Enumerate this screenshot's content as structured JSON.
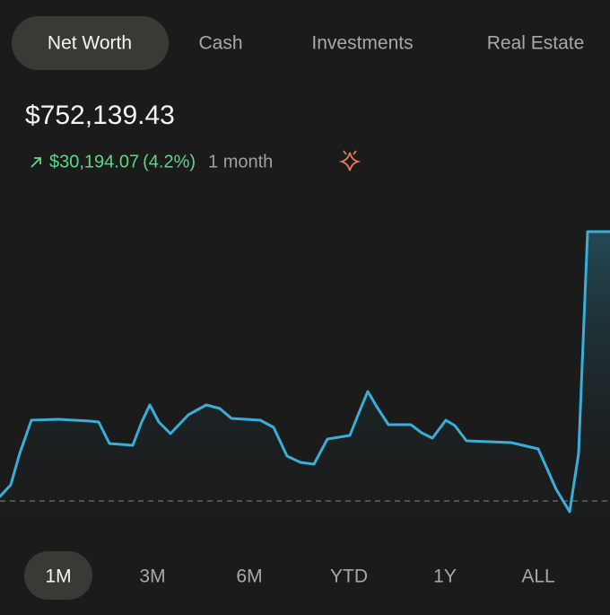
{
  "tabs": [
    "Net Worth",
    "Cash",
    "Investments",
    "Real Estate"
  ],
  "active_tab": 0,
  "balance": "$752,139.43",
  "change": {
    "amount": "$30,194.07",
    "percent": "(4.2%)",
    "period": "1 month"
  },
  "chart_data": {
    "type": "line",
    "color": "#3aaed8",
    "baseline": 42,
    "x": [
      0,
      12,
      22,
      35,
      65,
      100,
      110,
      122,
      148,
      158,
      167,
      177,
      190,
      210,
      230,
      245,
      258,
      290,
      305,
      320,
      335,
      350,
      365,
      390,
      400,
      410,
      420,
      433,
      458,
      470,
      482,
      497,
      507,
      520,
      570,
      600,
      620,
      635,
      645,
      655,
      680
    ],
    "values": [
      47,
      60,
      95,
      132,
      133,
      131,
      130,
      106,
      104,
      130,
      149,
      130,
      117,
      138,
      149,
      145,
      134,
      132,
      124,
      92,
      85,
      83,
      111,
      115,
      140,
      164,
      147,
      127,
      127,
      118,
      112,
      132,
      126,
      109,
      107,
      100,
      55,
      30,
      95,
      342,
      342
    ],
    "xlim": [
      0,
      680
    ],
    "ylim": [
      0,
      400
    ]
  },
  "ranges": [
    "1M",
    "3M",
    "6M",
    "YTD",
    "1Y",
    "ALL"
  ],
  "active_range": 0
}
